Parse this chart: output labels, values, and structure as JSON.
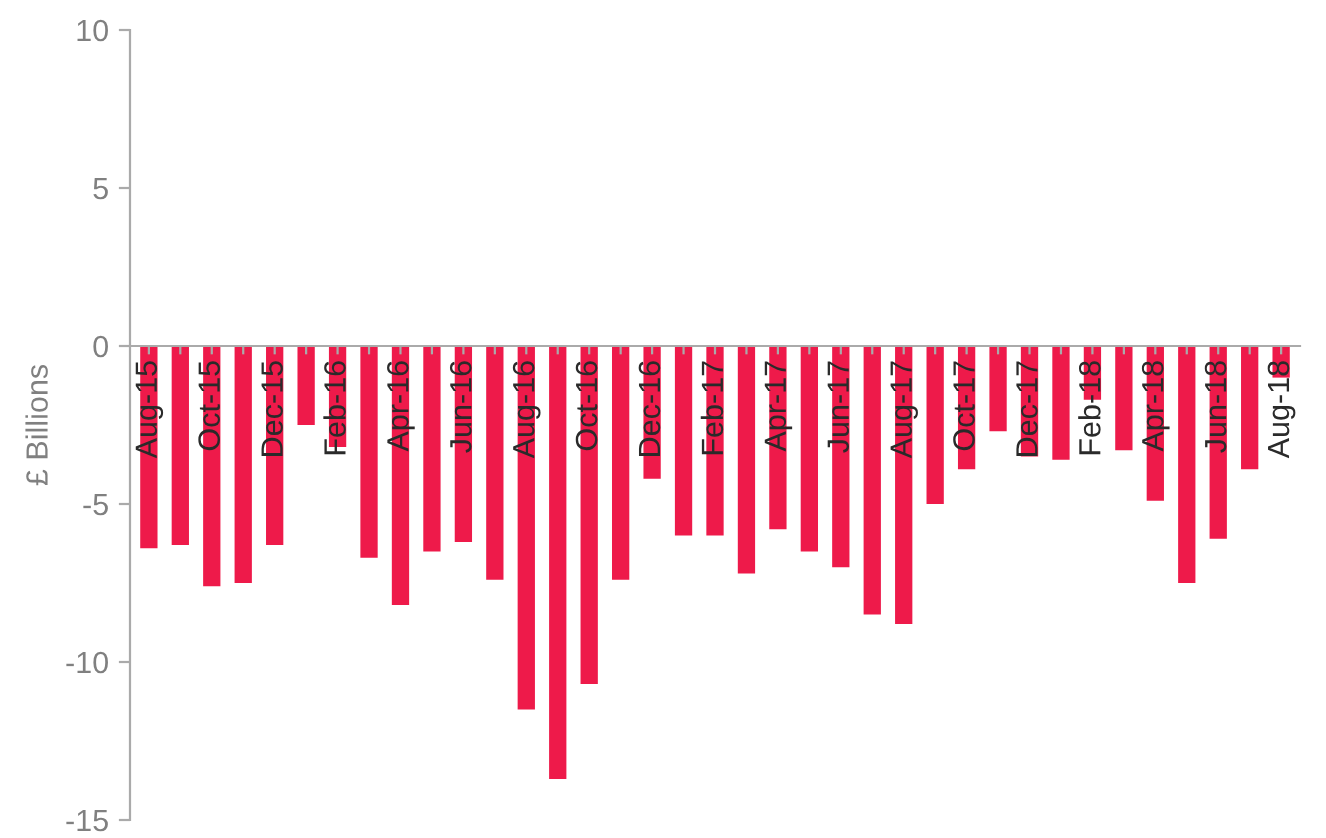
{
  "chart_data": {
    "type": "bar",
    "ylabel": "£ Billions",
    "categories": [
      "Aug-15",
      null,
      "Oct-15",
      null,
      "Dec-15",
      null,
      "Feb-16",
      null,
      "Apr-16",
      null,
      "Jun-16",
      null,
      "Aug-16",
      null,
      "Oct-16",
      null,
      "Dec-16",
      null,
      "Feb-17",
      null,
      "Apr-17",
      null,
      "Jun-17",
      null,
      "Aug-17",
      null,
      "Oct-17",
      null,
      "Dec-17",
      null,
      "Feb-18",
      null,
      "Apr-18",
      null,
      "Jun-18",
      null,
      "Aug-18"
    ],
    "values": [
      -6.4,
      -6.3,
      -7.6,
      -7.5,
      -6.3,
      -2.5,
      -3.2,
      -6.7,
      -8.2,
      -6.5,
      -6.2,
      -7.4,
      -11.5,
      -13.7,
      -10.7,
      -7.4,
      -4.2,
      -6.0,
      -6.0,
      -7.2,
      -5.8,
      -6.5,
      -7.0,
      -8.5,
      -8.8,
      -5.0,
      -3.9,
      -2.7,
      -3.5,
      -3.6,
      -1.7,
      -3.3,
      -4.9,
      -7.5,
      -6.1,
      -3.9,
      -1.0
    ],
    "color": "#ee1a4a",
    "ylim": [
      -15,
      10
    ],
    "yticks": [
      -15,
      -10,
      -5,
      0,
      5,
      10
    ],
    "grid": false,
    "legend": false
  }
}
